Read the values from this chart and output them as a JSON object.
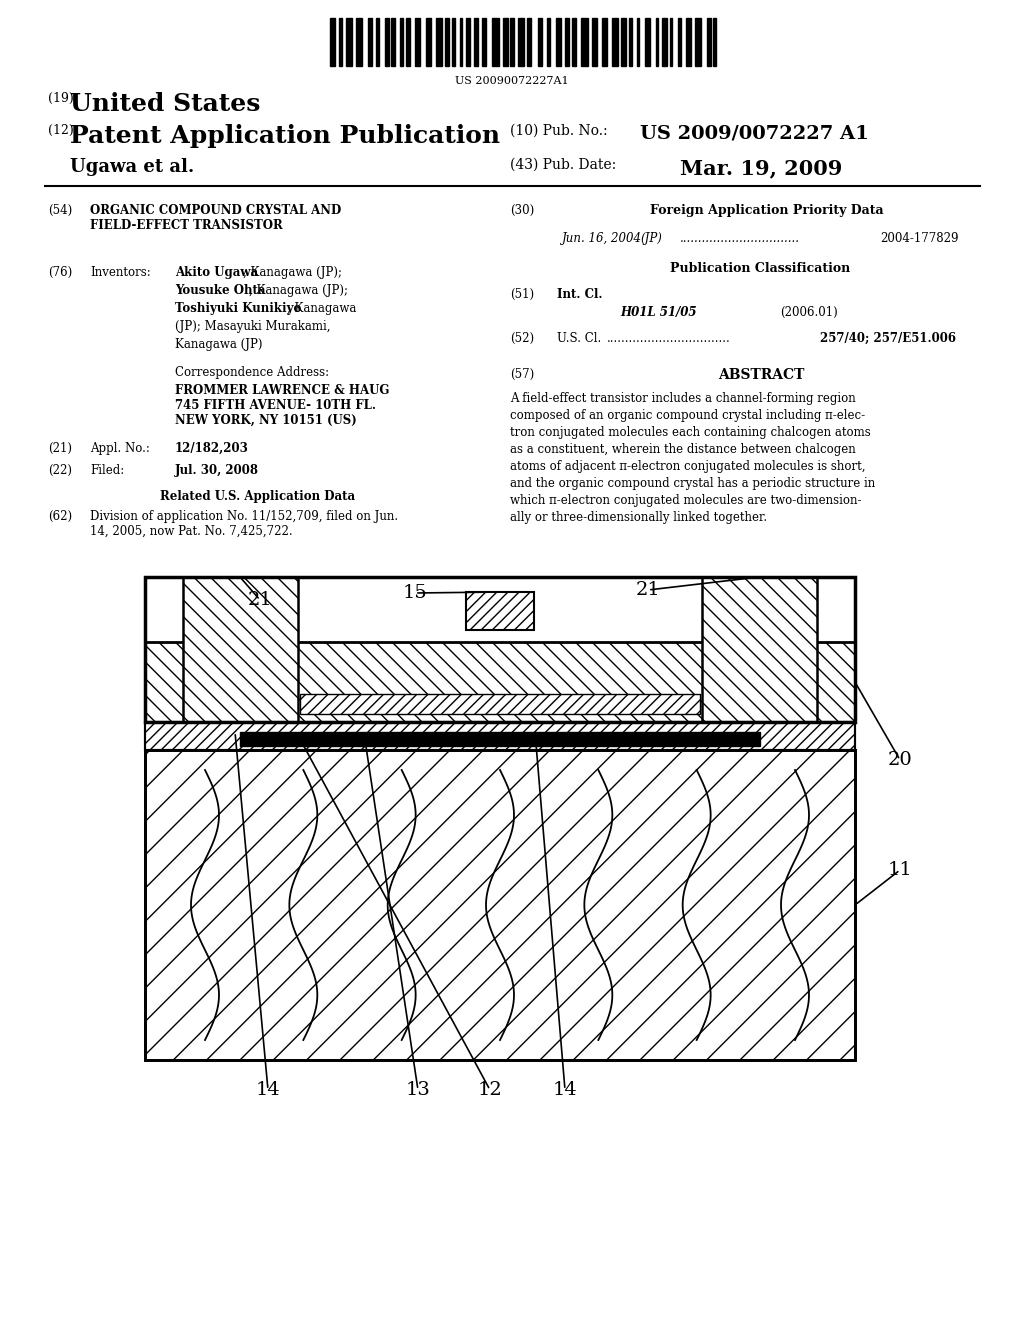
{
  "bg_color": "#ffffff",
  "barcode_text": "US 20090072227A1",
  "header": {
    "country_num": "(19)",
    "country": "United States",
    "type_num": "(12)",
    "type": "Patent Application Publication",
    "pub_num_label": "(10) Pub. No.:",
    "pub_num": "US 2009/0072227 A1",
    "authors_label": "Ugawa et al.",
    "date_num_label": "(43) Pub. Date:",
    "date": "Mar. 19, 2009"
  },
  "left_col": {
    "title_num": "(54)",
    "title": "ORGANIC COMPOUND CRYSTAL AND\nFIELD-EFFECT TRANSISTOR",
    "inventors_num": "(76)",
    "inventors_label": "Inventors:",
    "inventors_bold": "Akito Ugawa",
    "inventors_text": ", Kanagawa (JP);\nYousuke Ohta, Kanagawa (JP);\nToshiyuki Kunikiyo, Kanagawa\n(JP); Masayuki Murakami,\nKanagawa (JP)",
    "corr_label": "Correspondence Address:",
    "corr": "FROMMER LAWRENCE & HAUG\n745 FIFTH AVENUE- 10TH FL.\nNEW YORK, NY 10151 (US)",
    "appl_num": "(21)",
    "appl_label": "Appl. No.:",
    "appl_val": "12/182,203",
    "filed_num": "(22)",
    "filed_label": "Filed:",
    "filed_val": "Jul. 30, 2008",
    "related_title": "Related U.S. Application Data",
    "related_num": "(62)",
    "related_text": "Division of application No. 11/152,709, filed on Jun.\n14, 2005, now Pat. No. 7,425,722."
  },
  "right_col": {
    "foreign_num": "(30)",
    "foreign_title": "Foreign Application Priority Data",
    "foreign_entry_date": "Jun. 16, 2004",
    "foreign_entry_country": "(JP)",
    "foreign_entry_dots": "................................",
    "foreign_entry_num": "2004-177829",
    "pub_class_title": "Publication Classification",
    "intcl_num": "(51)",
    "intcl_label": "Int. Cl.",
    "intcl_val": "H01L 51/05",
    "intcl_date": "(2006.01)",
    "uscl_num": "(52)",
    "uscl_label": "U.S. Cl.",
    "uscl_dots": ".................................",
    "uscl_val": "257/40; 257/E51.006",
    "abstract_num": "(57)",
    "abstract_title": "ABSTRACT",
    "abstract_text": "A field-effect transistor includes a channel-forming region\ncomposed of an organic compound crystal including π-elec-\ntron conjugated molecules each containing chalcogen atoms\nas a constituent, wherein the distance between chalcogen\natoms of adjacent π-electron conjugated molecules is short,\nand the organic compound crystal has a periodic structure in\nwhich π-electron conjugated molecules are two-dimension-\nally or three-dimensionally linked together."
  }
}
